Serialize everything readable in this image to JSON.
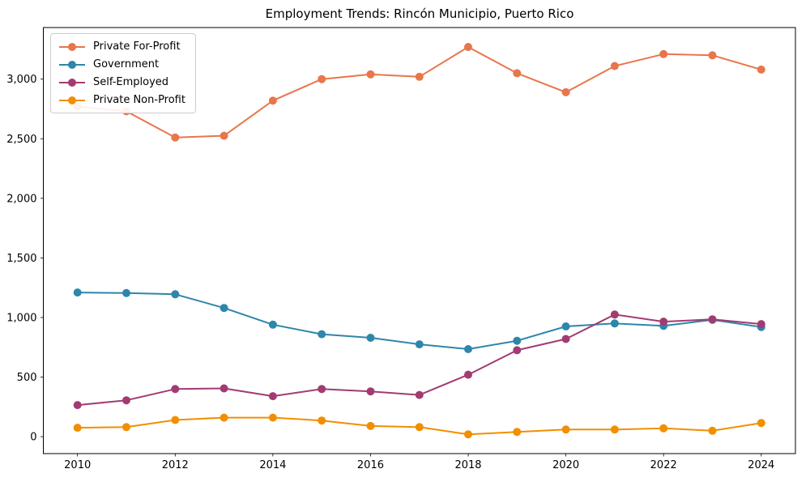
{
  "window": {
    "title": "Employment Trends: Rincón Municipio, Puerto Rico"
  },
  "chart_data": {
    "type": "line",
    "title": "Employment Trends: Rincón Municipio, Puerto Rico",
    "xlabel": "",
    "ylabel": "",
    "x": [
      2010,
      2011,
      2012,
      2013,
      2014,
      2015,
      2016,
      2017,
      2018,
      2019,
      2020,
      2021,
      2022,
      2023,
      2024
    ],
    "series": [
      {
        "name": "Private For-Profit",
        "color": "#E8764B",
        "values": [
          2770,
          2730,
          2510,
          2525,
          2820,
          3000,
          3040,
          3020,
          3270,
          3050,
          2890,
          3110,
          3210,
          3200,
          3080
        ]
      },
      {
        "name": "Government",
        "color": "#2E86AB",
        "values": [
          1210,
          1205,
          1195,
          1080,
          940,
          860,
          830,
          775,
          735,
          805,
          925,
          950,
          930,
          980,
          920
        ]
      },
      {
        "name": "Self-Employed",
        "color": "#A23B72",
        "values": [
          265,
          305,
          400,
          405,
          340,
          400,
          380,
          350,
          520,
          725,
          820,
          1025,
          965,
          985,
          945
        ]
      },
      {
        "name": "Private Non-Profit",
        "color": "#F18F01",
        "values": [
          75,
          80,
          140,
          160,
          160,
          135,
          90,
          80,
          20,
          40,
          60,
          60,
          70,
          50,
          115
        ]
      }
    ],
    "xticks": {
      "values": [
        2010,
        2012,
        2014,
        2016,
        2018,
        2020,
        2022,
        2024
      ],
      "labels": [
        "2010",
        "2012",
        "2014",
        "2016",
        "2018",
        "2020",
        "2022",
        "2024"
      ]
    },
    "yticks": {
      "values": [
        0,
        500,
        1000,
        1500,
        2000,
        2500,
        3000
      ],
      "labels": [
        "0",
        "500",
        "1,000",
        "1,500",
        "2,000",
        "2,500",
        "3,000"
      ]
    },
    "xlim": [
      2009.3,
      2024.7
    ],
    "ylim": [
      -142,
      3433
    ],
    "legend_position": "upper-left",
    "grid": false,
    "background": "#ffffff",
    "marker": "circle"
  }
}
